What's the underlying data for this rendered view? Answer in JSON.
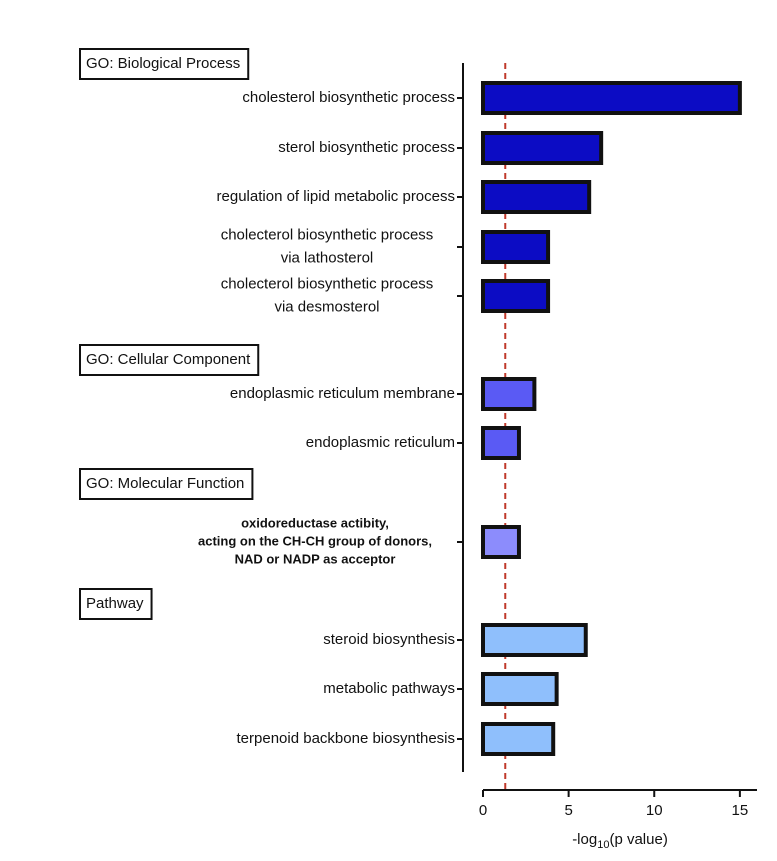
{
  "chart_data": {
    "type": "bar",
    "orientation": "horizontal",
    "groups": [
      {
        "name": "GO: Biological Process",
        "color": "#0c0cc4",
        "categories": [
          "cholesterol biosynthetic process",
          "sterol biosynthetic process",
          "regulation of lipid metabolic process",
          [
            "cholecterol biosynthetic process",
            "via lathosterol"
          ],
          [
            "cholecterol biosynthetic process",
            "via desmosterol"
          ]
        ],
        "values": [
          15.0,
          6.9,
          6.2,
          3.8,
          3.8
        ]
      },
      {
        "name": "GO: Cellular Component",
        "color": "#5a5af4",
        "categories": [
          "endoplasmic reticulum membrane",
          "endoplasmic reticulum"
        ],
        "values": [
          3.0,
          2.1
        ]
      },
      {
        "name": "GO: Molecular Function",
        "color": "#8c8cfc",
        "categories": [
          [
            "oxidoreductase actibity,",
            "acting on the CH-CH group of donors,",
            "NAD or NADP as acceptor"
          ]
        ],
        "values": [
          2.1
        ]
      },
      {
        "name": "Pathway",
        "color": "#8fbffc",
        "categories": [
          "steroid biosynthesis",
          "metabolic pathways",
          "terpenoid backbone biosynthesis"
        ],
        "values": [
          6.0,
          4.3,
          4.1
        ]
      }
    ],
    "threshold": 1.3,
    "threshold_color": "#c0392b",
    "xlabel": [
      "-log",
      "10",
      "(p value)"
    ],
    "xlim": [
      0,
      16
    ],
    "xticks": [
      0,
      5,
      10,
      15
    ]
  }
}
